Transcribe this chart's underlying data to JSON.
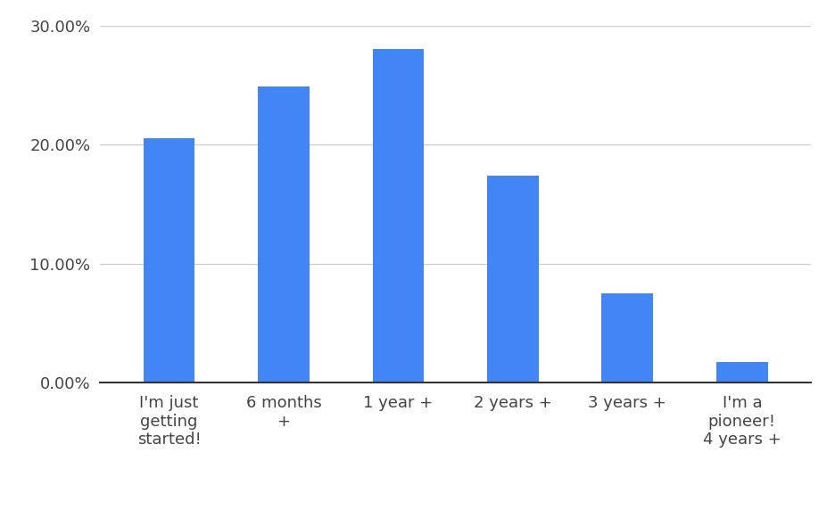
{
  "categories": [
    "I'm just\ngetting\nstarted!",
    "6 months\n+",
    "1 year +",
    "2 years +",
    "3 years +",
    "I'm a\npioneer!\n4 years +"
  ],
  "values": [
    20.5,
    24.9,
    28.0,
    17.4,
    7.5,
    1.7
  ],
  "bar_color": "#4285f4",
  "background_color": "#ffffff",
  "ylim": [
    0,
    30
  ],
  "yticks": [
    0,
    10,
    20,
    30
  ],
  "grid_color": "#cccccc",
  "tick_label_color": "#444444",
  "tick_label_fontsize": 13,
  "bar_width": 0.45,
  "figsize": [
    9.37,
    5.72
  ],
  "dpi": 100
}
